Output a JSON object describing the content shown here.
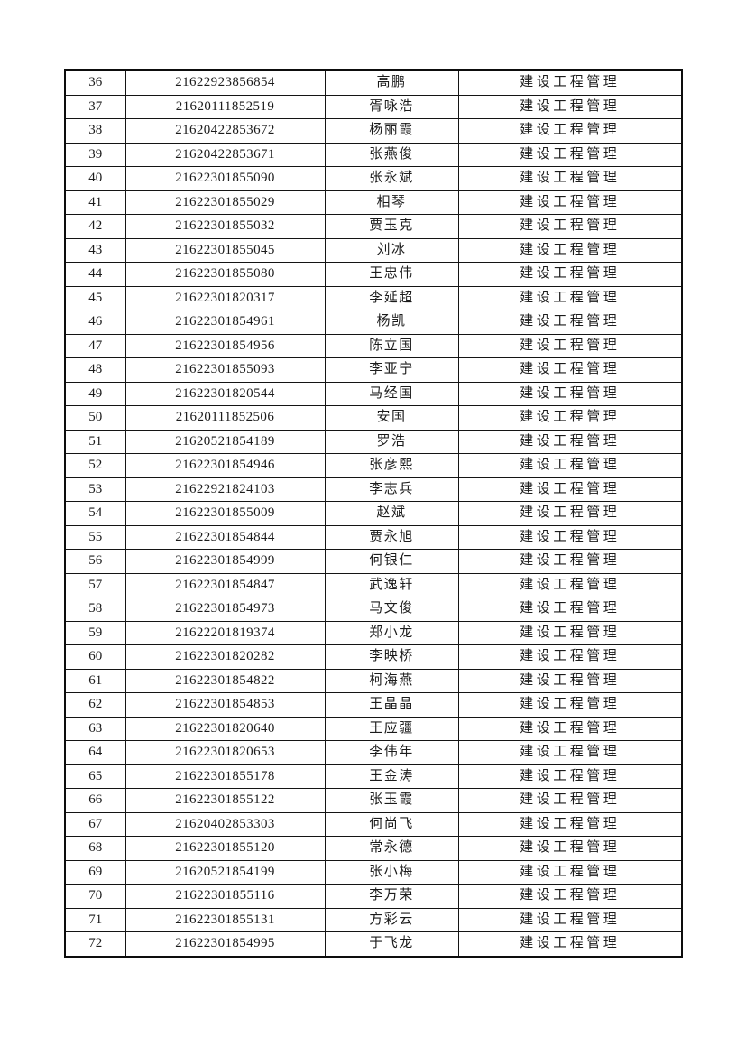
{
  "page": {
    "background_color": "#ffffff",
    "text_color": "#1b1b1b",
    "border_color": "#141414"
  },
  "table": {
    "columns": [
      {
        "key": "no",
        "role": "row-number"
      },
      {
        "key": "id",
        "role": "student-id"
      },
      {
        "key": "name",
        "role": "student-name"
      },
      {
        "key": "program",
        "role": "program-name"
      }
    ],
    "rows": [
      {
        "no": "36",
        "id": "21622923856854",
        "name": "高鹏",
        "program": "建设工程管理"
      },
      {
        "no": "37",
        "id": "21620111852519",
        "name": "胥咏浩",
        "program": "建设工程管理"
      },
      {
        "no": "38",
        "id": "21620422853672",
        "name": "杨丽霞",
        "program": "建设工程管理"
      },
      {
        "no": "39",
        "id": "21620422853671",
        "name": "张燕俊",
        "program": "建设工程管理"
      },
      {
        "no": "40",
        "id": "21622301855090",
        "name": "张永斌",
        "program": "建设工程管理"
      },
      {
        "no": "41",
        "id": "21622301855029",
        "name": "相琴",
        "program": "建设工程管理"
      },
      {
        "no": "42",
        "id": "21622301855032",
        "name": "贾玉克",
        "program": "建设工程管理"
      },
      {
        "no": "43",
        "id": "21622301855045",
        "name": "刘冰",
        "program": "建设工程管理"
      },
      {
        "no": "44",
        "id": "21622301855080",
        "name": "王忠伟",
        "program": "建设工程管理"
      },
      {
        "no": "45",
        "id": "21622301820317",
        "name": "李延超",
        "program": "建设工程管理"
      },
      {
        "no": "46",
        "id": "21622301854961",
        "name": "杨凯",
        "program": "建设工程管理"
      },
      {
        "no": "47",
        "id": "21622301854956",
        "name": "陈立国",
        "program": "建设工程管理"
      },
      {
        "no": "48",
        "id": "21622301855093",
        "name": "李亚宁",
        "program": "建设工程管理"
      },
      {
        "no": "49",
        "id": "21622301820544",
        "name": "马经国",
        "program": "建设工程管理"
      },
      {
        "no": "50",
        "id": "21620111852506",
        "name": "安国",
        "program": "建设工程管理"
      },
      {
        "no": "51",
        "id": "21620521854189",
        "name": "罗浩",
        "program": "建设工程管理"
      },
      {
        "no": "52",
        "id": "21622301854946",
        "name": "张彦熙",
        "program": "建设工程管理"
      },
      {
        "no": "53",
        "id": "21622921824103",
        "name": "李志兵",
        "program": "建设工程管理"
      },
      {
        "no": "54",
        "id": "21622301855009",
        "name": "赵斌",
        "program": "建设工程管理"
      },
      {
        "no": "55",
        "id": "21622301854844",
        "name": "贾永旭",
        "program": "建设工程管理"
      },
      {
        "no": "56",
        "id": "21622301854999",
        "name": "何银仁",
        "program": "建设工程管理"
      },
      {
        "no": "57",
        "id": "21622301854847",
        "name": "武逸轩",
        "program": "建设工程管理"
      },
      {
        "no": "58",
        "id": "21622301854973",
        "name": "马文俊",
        "program": "建设工程管理"
      },
      {
        "no": "59",
        "id": "21622201819374",
        "name": "郑小龙",
        "program": "建设工程管理"
      },
      {
        "no": "60",
        "id": "21622301820282",
        "name": "李映桥",
        "program": "建设工程管理"
      },
      {
        "no": "61",
        "id": "21622301854822",
        "name": "柯海燕",
        "program": "建设工程管理"
      },
      {
        "no": "62",
        "id": "21622301854853",
        "name": "王晶晶",
        "program": "建设工程管理"
      },
      {
        "no": "63",
        "id": "21622301820640",
        "name": "王应疆",
        "program": "建设工程管理"
      },
      {
        "no": "64",
        "id": "21622301820653",
        "name": "李伟年",
        "program": "建设工程管理"
      },
      {
        "no": "65",
        "id": "21622301855178",
        "name": "王金涛",
        "program": "建设工程管理"
      },
      {
        "no": "66",
        "id": "21622301855122",
        "name": "张玉霞",
        "program": "建设工程管理"
      },
      {
        "no": "67",
        "id": "21620402853303",
        "name": "何尚飞",
        "program": "建设工程管理"
      },
      {
        "no": "68",
        "id": "21622301855120",
        "name": "常永德",
        "program": "建设工程管理"
      },
      {
        "no": "69",
        "id": "21620521854199",
        "name": "张小梅",
        "program": "建设工程管理"
      },
      {
        "no": "70",
        "id": "21622301855116",
        "name": "李万荣",
        "program": "建设工程管理"
      },
      {
        "no": "71",
        "id": "21622301855131",
        "name": "方彩云",
        "program": "建设工程管理"
      },
      {
        "no": "72",
        "id": "21622301854995",
        "name": "于飞龙",
        "program": "建设工程管理"
      }
    ]
  }
}
